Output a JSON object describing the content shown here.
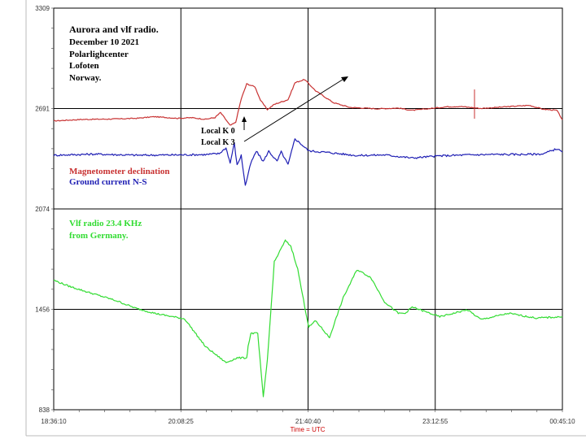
{
  "title_lines": [
    "Aurora and vlf radio.",
    "December 10 2021",
    "Polarlighcenter",
    "Lofoten",
    "Norway."
  ],
  "local_k_lines": [
    "Local K 0",
    "Local K 3"
  ],
  "colors": {
    "magnetometer": "#c83232",
    "ground": "#1f1fb4",
    "vlf": "#32dc32",
    "grid": "#000000",
    "frame": "#000000",
    "xlabel": "#cc0000"
  },
  "chart_data": {
    "type": "line",
    "xlabel": "Time = UTC",
    "ylabel": "",
    "ylim": [
      838,
      3309
    ],
    "ytick_labels": [
      "3309",
      "2691",
      "2074",
      "1456",
      "838"
    ],
    "xlim": [
      "18:36:10",
      "00:45:10"
    ],
    "xtick_labels": [
      "18:36:10",
      "20:08:25",
      "21:40:40",
      "23:12:55",
      "00:45:10"
    ],
    "grid": true,
    "series": [
      {
        "name": "Magnetometer declination",
        "color": "#c83232",
        "x_minutes": [
          0,
          20,
          45,
          60,
          73,
          90,
          100,
          110,
          117,
          121,
          128,
          132,
          136,
          140,
          146,
          150,
          155,
          160,
          170,
          175,
          182,
          190,
          203,
          215,
          235,
          250,
          260,
          275,
          285,
          295,
          310,
          330,
          345,
          355,
          365,
          369
        ],
        "y": [
          2615,
          2624,
          2627,
          2631,
          2641,
          2631,
          2635,
          2625,
          2636,
          2667,
          2587,
          2606,
          2750,
          2843,
          2825,
          2742,
          2685,
          2717,
          2746,
          2850,
          2870,
          2800,
          2727,
          2698,
          2690,
          2694,
          2680,
          2693,
          2702,
          2704,
          2692,
          2703,
          2711,
          2687,
          2680,
          2622
        ],
        "label_line1": "Magnetometer declination"
      },
      {
        "name": "Ground current N-S",
        "color": "#1f1fb4",
        "x_minutes": [
          0,
          30,
          60,
          90,
          110,
          120,
          125,
          128,
          131,
          133,
          136,
          139,
          143,
          147,
          152,
          156,
          162,
          165,
          170,
          175,
          185,
          200,
          220,
          240,
          260,
          280,
          300,
          320,
          340,
          355,
          365,
          369
        ],
        "y": [
          2404,
          2411,
          2404,
          2406,
          2408,
          2414,
          2449,
          2356,
          2478,
          2342,
          2403,
          2217,
          2356,
          2429,
          2366,
          2429,
          2366,
          2425,
          2346,
          2506,
          2431,
          2420,
          2402,
          2406,
          2387,
          2400,
          2406,
          2409,
          2409,
          2412,
          2444,
          2423
        ]
      },
      {
        "name": "Vlf radio 23.4 KHz from Germany",
        "color": "#32dc32",
        "x_minutes": [
          0,
          10,
          25,
          45,
          60,
          75,
          95,
          110,
          125,
          133,
          140,
          141,
          143,
          148,
          152,
          155,
          160,
          168,
          172,
          177,
          182,
          185,
          190,
          200,
          210,
          220,
          230,
          240,
          250,
          255,
          260,
          280,
          300,
          310,
          330,
          350,
          369
        ],
        "y": [
          1635,
          1601,
          1561,
          1510,
          1461,
          1428,
          1397,
          1227,
          1128,
          1157,
          1157,
          1227,
          1308,
          1308,
          916,
          1145,
          1747,
          1879,
          1845,
          1703,
          1476,
          1347,
          1385,
          1282,
          1527,
          1700,
          1652,
          1502,
          1431,
          1431,
          1470,
          1410,
          1453,
          1393,
          1431,
          1402,
          1410
        ]
      }
    ],
    "legend": [
      "Magnetometer declination",
      "Ground current N-S",
      "Vlf radio 23.4 KHz",
      "from Germany."
    ]
  }
}
